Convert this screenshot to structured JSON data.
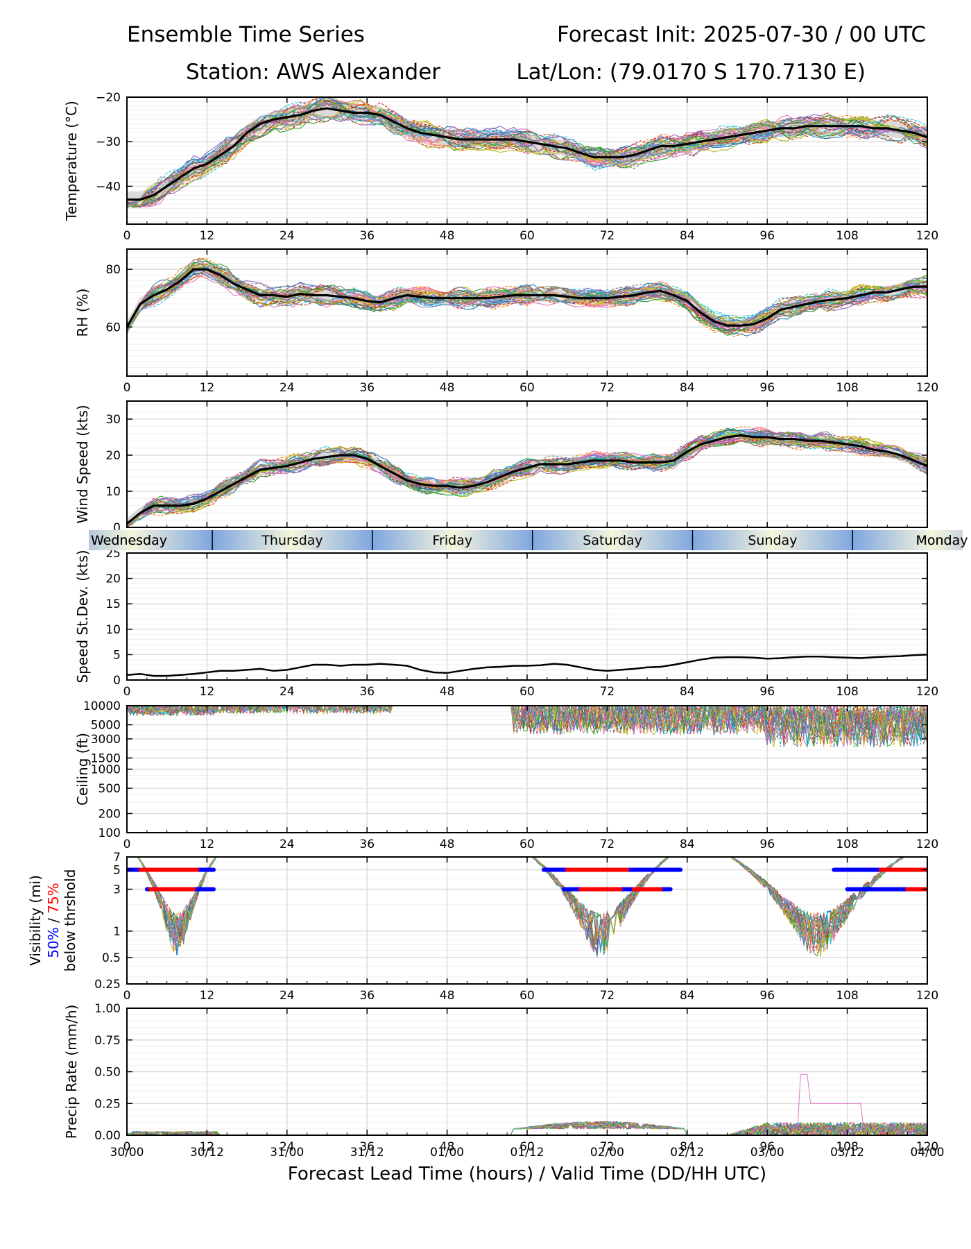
{
  "header": {
    "title_left": "Ensemble Time Series",
    "title_right": "Forecast Init: 2025-07-30 / 00 UTC",
    "station": "Station: AWS Alexander",
    "latlon": "Lat/Lon: (79.0170 S 170.7130 E)"
  },
  "xaxis": {
    "ticks": [
      0,
      12,
      24,
      36,
      48,
      60,
      72,
      84,
      96,
      108,
      120
    ],
    "valid_time_labels": [
      "30/00",
      "30/12",
      "31/00",
      "31/12",
      "01/00",
      "01/12",
      "02/00",
      "02/12",
      "03/00",
      "03/12",
      "04/00"
    ],
    "label": "Forecast Lead Time (hours) / Valid Time (DD/HH UTC)",
    "range": [
      0,
      120
    ]
  },
  "day_band": {
    "days": [
      "Wednesday",
      "Thursday",
      "Friday",
      "Saturday",
      "Sunday",
      "Monday"
    ],
    "boundaries_hours": [
      12.8,
      36.8,
      60.8,
      84.8,
      108.8
    ]
  },
  "colors": {
    "mean": "#000000",
    "spread": "#bbbbbb",
    "vis_50": "#0000ff",
    "vis_75": "#ff0000",
    "day_blue": "#7ea6e0",
    "day_cream": "#f5f5dc",
    "members": [
      "#1f77b4",
      "#ff7f0e",
      "#2ca02c",
      "#d62728",
      "#9467bd",
      "#8c564b",
      "#e377c2",
      "#7f7f7f",
      "#bcbd22",
      "#17becf"
    ]
  },
  "chart_data": [
    {
      "type": "line",
      "panel": "temperature",
      "ylabel": "Temperature (°C)",
      "ylim": [
        -48.5,
        -20
      ],
      "yticks": [
        -20,
        -30,
        -40
      ],
      "ytick_labels": [
        "−20",
        "−30",
        "−40"
      ],
      "grid": true,
      "mean": {
        "x": [
          0,
          2,
          4,
          6,
          8,
          10,
          12,
          14,
          16,
          18,
          20,
          22,
          24,
          26,
          28,
          30,
          32,
          34,
          36,
          38,
          40,
          42,
          44,
          46,
          48,
          50,
          52,
          54,
          56,
          58,
          60,
          62,
          64,
          66,
          68,
          70,
          72,
          74,
          76,
          78,
          80,
          82,
          84,
          86,
          88,
          90,
          92,
          94,
          96,
          98,
          100,
          102,
          104,
          106,
          108,
          110,
          112,
          114,
          116,
          118,
          120
        ],
        "y": [
          -43,
          -43,
          -42,
          -40,
          -38,
          -36,
          -35,
          -33,
          -31,
          -28,
          -26,
          -25,
          -24.5,
          -24,
          -23,
          -22.5,
          -23,
          -23.5,
          -23.5,
          -24,
          -25.5,
          -27,
          -28,
          -28.5,
          -29,
          -29.5,
          -29.5,
          -29.5,
          -29.5,
          -29.5,
          -30,
          -30.5,
          -31,
          -31.5,
          -32.5,
          -33.5,
          -33.5,
          -33.5,
          -33,
          -32,
          -31,
          -31,
          -30.5,
          -30,
          -29.5,
          -29,
          -28.5,
          -28,
          -27.5,
          -27,
          -27,
          -26.5,
          -26.5,
          -26.5,
          -26.5,
          -26.5,
          -27,
          -27,
          -27.5,
          -28,
          -29
        ]
      },
      "spread": 1.8,
      "member_noise": 2.6
    },
    {
      "type": "line",
      "panel": "rh",
      "ylabel": "RH (%)",
      "ylim": [
        43,
        87
      ],
      "yticks": [
        80,
        60
      ],
      "ytick_labels": [
        "80",
        "60"
      ],
      "grid": true,
      "mean": {
        "x": [
          0,
          2,
          4,
          6,
          8,
          10,
          12,
          14,
          16,
          18,
          20,
          22,
          24,
          26,
          28,
          30,
          32,
          34,
          36,
          38,
          40,
          42,
          44,
          46,
          48,
          50,
          52,
          54,
          56,
          58,
          60,
          62,
          64,
          66,
          68,
          70,
          72,
          74,
          76,
          78,
          80,
          82,
          84,
          86,
          88,
          90,
          92,
          94,
          96,
          98,
          100,
          102,
          104,
          106,
          108,
          110,
          112,
          114,
          116,
          118,
          120
        ],
        "y": [
          60,
          68,
          71,
          73,
          76,
          80,
          80,
          78,
          75,
          73,
          71,
          71,
          70.5,
          71.5,
          71,
          71,
          70.5,
          70,
          69,
          68.5,
          70,
          71,
          70.5,
          70,
          70,
          70,
          70,
          70,
          70.5,
          71,
          71,
          71,
          71,
          70.5,
          70,
          70,
          70,
          70.5,
          71,
          72,
          72.5,
          71,
          69,
          65,
          62,
          60.5,
          60.5,
          61,
          63,
          66,
          67,
          68,
          69,
          69.5,
          70,
          71,
          72,
          72,
          73,
          74,
          74
        ]
      },
      "spread": 2.2,
      "member_noise": 3.5
    },
    {
      "type": "line",
      "panel": "wind_speed",
      "ylabel": "Wind Speed (kts)",
      "ylim": [
        0,
        35
      ],
      "yticks": [
        0,
        10,
        20,
        30
      ],
      "ytick_labels": [
        "0",
        "10",
        "20",
        "30"
      ],
      "grid": true,
      "mean": {
        "x": [
          0,
          2,
          4,
          6,
          8,
          10,
          12,
          14,
          16,
          18,
          20,
          22,
          24,
          26,
          28,
          30,
          32,
          34,
          36,
          38,
          40,
          42,
          44,
          46,
          48,
          50,
          52,
          54,
          56,
          58,
          60,
          62,
          64,
          66,
          68,
          70,
          72,
          74,
          76,
          78,
          80,
          82,
          84,
          86,
          88,
          90,
          92,
          94,
          96,
          98,
          100,
          102,
          104,
          106,
          108,
          110,
          112,
          114,
          116,
          118,
          120
        ],
        "y": [
          1,
          4,
          6,
          6,
          6,
          6.5,
          8,
          10,
          12,
          14,
          16,
          16.5,
          17,
          18,
          19,
          19.5,
          20,
          20,
          19,
          17,
          15,
          13,
          12,
          11.5,
          11.5,
          11,
          11.5,
          12.5,
          14,
          15.5,
          16.5,
          17.5,
          17.5,
          17.5,
          18,
          18.5,
          18.5,
          18.5,
          18,
          18,
          18,
          18.5,
          21,
          23,
          24,
          25,
          25.5,
          25,
          25,
          24.5,
          24.5,
          24,
          24,
          23.5,
          23,
          22.5,
          21.5,
          21,
          20,
          18.5,
          17
        ]
      },
      "spread": 1.6,
      "member_noise": 2.4
    },
    {
      "type": "line",
      "panel": "speed_stdev",
      "ylabel": "Speed St.Dev. (kts)",
      "ylim": [
        0,
        25
      ],
      "yticks": [
        0,
        5,
        10,
        15,
        20,
        25
      ],
      "ytick_labels": [
        "0",
        "5",
        "10",
        "15",
        "20",
        "25"
      ],
      "grid": true,
      "mean": {
        "x": [
          0,
          2,
          4,
          6,
          8,
          10,
          12,
          14,
          16,
          18,
          20,
          22,
          24,
          26,
          28,
          30,
          32,
          34,
          36,
          38,
          40,
          42,
          44,
          46,
          48,
          50,
          52,
          54,
          56,
          58,
          60,
          62,
          64,
          66,
          68,
          70,
          72,
          74,
          76,
          78,
          80,
          82,
          84,
          86,
          88,
          90,
          92,
          94,
          96,
          98,
          100,
          102,
          104,
          106,
          108,
          110,
          112,
          114,
          116,
          118,
          120
        ],
        "y": [
          1,
          1.2,
          0.8,
          0.8,
          1,
          1.2,
          1.5,
          1.8,
          1.8,
          2,
          2.2,
          1.8,
          2,
          2.5,
          3,
          3,
          2.8,
          3,
          3,
          3.2,
          3,
          2.8,
          2,
          1.5,
          1.4,
          1.8,
          2.2,
          2.5,
          2.6,
          2.8,
          2.8,
          2.9,
          3.2,
          3,
          2.5,
          2,
          1.8,
          2,
          2.2,
          2.5,
          2.6,
          3,
          3.5,
          4,
          4.4,
          4.5,
          4.5,
          4.4,
          4.2,
          4.3,
          4.5,
          4.6,
          4.6,
          4.5,
          4.4,
          4.3,
          4.5,
          4.6,
          4.7,
          4.9,
          5
        ]
      }
    },
    {
      "type": "line",
      "panel": "ceiling",
      "ylabel": "Ceiling (ft)",
      "scale": "log",
      "ylim": [
        100,
        10000
      ],
      "yticks": [
        10000,
        5000,
        3000,
        1500,
        1000,
        500,
        200,
        100
      ],
      "ytick_labels": [
        "10000",
        "5000",
        "3000",
        "1500",
        "1000",
        "500",
        "200",
        "100"
      ],
      "grid": true
    },
    {
      "type": "line",
      "panel": "visibility",
      "ylabel": "Visibility (mi)",
      "ylabel_threshold_50": "50%",
      "ylabel_threshold_sep": " / ",
      "ylabel_threshold_75": "75%",
      "ylabel_below": "below thrshold",
      "scale": "log",
      "ylim": [
        0.25,
        7
      ],
      "yticks": [
        7,
        5,
        3,
        1,
        0.5,
        0.25
      ],
      "ytick_labels": [
        "7",
        "5",
        "3",
        "1",
        "0.5",
        "0.25"
      ],
      "grid": true,
      "threshold_bars_5mi": {
        "blue": [
          [
            0,
            2
          ],
          [
            10.5,
            13
          ],
          [
            62.5,
            66
          ],
          [
            75,
            83
          ],
          [
            106,
            113
          ]
        ],
        "red": [
          [
            2,
            10.5
          ],
          [
            66,
            75
          ],
          [
            113,
            120
          ]
        ]
      },
      "threshold_bars_3mi": {
        "blue": [
          [
            3,
            3.5
          ],
          [
            10,
            13
          ],
          [
            65.5,
            68
          ],
          [
            74,
            76
          ],
          [
            80,
            81.5
          ],
          [
            108,
            117
          ]
        ],
        "red": [
          [
            3.5,
            10
          ],
          [
            68,
            74
          ],
          [
            76,
            80
          ],
          [
            117,
            120
          ]
        ]
      }
    },
    {
      "type": "line",
      "panel": "precip_rate",
      "ylabel": "Precip Rate (mm/h)",
      "ylim": [
        0,
        1
      ],
      "yticks": [
        0,
        0.25,
        0.5,
        0.75,
        1.0
      ],
      "ytick_labels": [
        "0.00",
        "0.25",
        "0.50",
        "0.75",
        "1.00"
      ],
      "grid": true
    }
  ]
}
